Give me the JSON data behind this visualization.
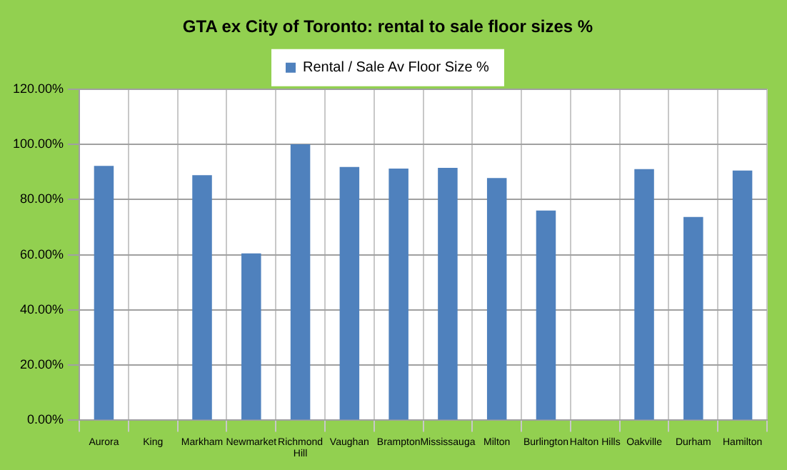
{
  "chart_data": {
    "type": "bar",
    "title": "GTA ex City of Toronto: rental to sale floor sizes %",
    "categories": [
      "Aurora",
      "King",
      "Markham",
      "Newmarket",
      "Richmond Hill",
      "Vaughan",
      "Brampton",
      "Mississauga",
      "Milton",
      "Burlington",
      "Halton Hills",
      "Oakville",
      "Durham",
      "Hamilton"
    ],
    "series": [
      {
        "name": "Rental / Sale Av Floor Size %",
        "color": "#4f81bd",
        "values": [
          92.2,
          null,
          88.8,
          60.5,
          100,
          91.8,
          91.2,
          91.5,
          87.8,
          76,
          null,
          91,
          73.7,
          90.5
        ]
      }
    ],
    "ylim": [
      0,
      120
    ],
    "yticks": [
      {
        "value": 0,
        "label": "0.00%"
      },
      {
        "value": 20,
        "label": "20.00%"
      },
      {
        "value": 40,
        "label": "40.00%"
      },
      {
        "value": 60,
        "label": "60.00%"
      },
      {
        "value": 80,
        "label": "80.00%"
      },
      {
        "value": 100,
        "label": "100.00%"
      },
      {
        "value": 120,
        "label": "120.00%"
      }
    ],
    "grid": true,
    "legend": "top"
  }
}
